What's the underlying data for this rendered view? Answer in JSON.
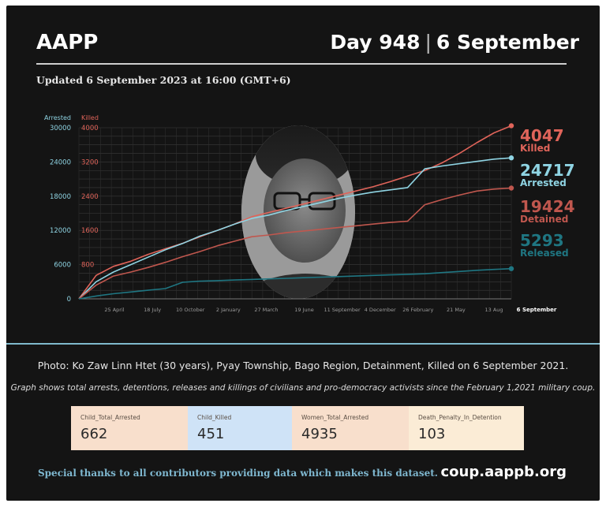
{
  "header": {
    "org": "AAPP",
    "day": "Day 948",
    "separator": "|",
    "date": "6 September",
    "updated": "Updated 6 September 2023 at 16:00 (GMT+6)"
  },
  "chart_data": {
    "type": "line",
    "left_axis": {
      "label": "Arrested",
      "ticks": [
        "30000",
        "24000",
        "18000",
        "12000",
        "6000",
        "0"
      ],
      "range": [
        0,
        30000
      ]
    },
    "right_axis": {
      "label": "Killed",
      "ticks": [
        "4000",
        "3200",
        "2400",
        "1600",
        "800"
      ],
      "range": [
        0,
        4000
      ]
    },
    "x_ticks": [
      "25 April",
      "18 July",
      "10 October",
      "2 January",
      "27 March",
      "19 June",
      "11 September",
      "4 December",
      "26 February",
      "21 May",
      "13 Aug",
      "6 September"
    ],
    "series": [
      {
        "name": "Killed",
        "axis": "right",
        "color": "#e0645a",
        "end_value": 4047,
        "x": [
          0,
          1,
          2,
          3,
          4,
          5,
          6,
          7,
          8,
          9,
          10,
          11,
          12,
          13,
          14,
          15,
          16,
          17,
          18,
          19,
          20,
          21,
          22,
          23,
          24,
          25
        ],
        "y": [
          0,
          550,
          760,
          880,
          1040,
          1170,
          1300,
          1450,
          1600,
          1750,
          1920,
          2020,
          2120,
          2220,
          2320,
          2420,
          2520,
          2620,
          2740,
          2870,
          3000,
          3180,
          3400,
          3650,
          3880,
          4047
        ]
      },
      {
        "name": "Arrested",
        "axis": "left",
        "color": "#8fd4e3",
        "end_value": 24717,
        "x": [
          0,
          1,
          2,
          3,
          4,
          5,
          6,
          7,
          8,
          9,
          10,
          11,
          12,
          13,
          14,
          15,
          16,
          17,
          18,
          19,
          20,
          21,
          22,
          23,
          24,
          25
        ],
        "y": [
          0,
          3000,
          4700,
          6000,
          7300,
          8600,
          9700,
          11000,
          12000,
          13100,
          14100,
          14700,
          15500,
          16200,
          16900,
          17600,
          18200,
          18700,
          19100,
          19500,
          22800,
          23300,
          23700,
          24100,
          24500,
          24717
        ]
      },
      {
        "name": "Detained",
        "axis": "left",
        "color": "#c0574e",
        "end_value": 19424,
        "x": [
          0,
          1,
          2,
          3,
          4,
          5,
          6,
          7,
          8,
          9,
          10,
          11,
          12,
          13,
          14,
          15,
          16,
          17,
          18,
          19,
          20,
          21,
          22,
          23,
          24,
          25
        ],
        "y": [
          0,
          2400,
          4000,
          4700,
          5500,
          6400,
          7400,
          8300,
          9300,
          10100,
          10900,
          11200,
          11600,
          11900,
          12200,
          12500,
          12800,
          13100,
          13400,
          13600,
          16500,
          17400,
          18200,
          18900,
          19250,
          19424
        ]
      },
      {
        "name": "Released",
        "axis": "left",
        "color": "#1f7682",
        "end_value": 5293,
        "x": [
          0,
          1,
          2,
          3,
          4,
          5,
          6,
          7,
          8,
          9,
          10,
          11,
          12,
          13,
          14,
          15,
          16,
          17,
          18,
          19,
          20,
          21,
          22,
          23,
          24,
          25
        ],
        "y": [
          0,
          500,
          900,
          1200,
          1500,
          1800,
          2900,
          3100,
          3200,
          3300,
          3400,
          3500,
          3600,
          3700,
          3800,
          3900,
          4000,
          4100,
          4200,
          4300,
          4400,
          4600,
          4800,
          5000,
          5150,
          5293
        ]
      }
    ],
    "labels": [
      {
        "value": "4047",
        "name": "Killed",
        "color": "#e0645a"
      },
      {
        "value": "24717",
        "name": "Arrested",
        "color": "#8fd4e3"
      },
      {
        "value": "19424",
        "name": "Detained",
        "color": "#c0574e"
      },
      {
        "value": "5293",
        "name": "Released",
        "color": "#1f7682"
      }
    ]
  },
  "photo_caption": "Photo: Ko Zaw Linn Htet (30 years), Pyay Township, Bago Region, Detainment, Killed on 6 September 2021.",
  "note": "Graph shows total arrests, detentions, releases and killings of civilians and pro-democracy activists since the February 1,2021 military coup.",
  "stats": [
    {
      "label": "Child_Total_Arrested",
      "value": "662",
      "color": "#f8dfcc"
    },
    {
      "label": "Child_Killed",
      "value": "451",
      "color": "#cfe3f7"
    },
    {
      "label": "Women_Total_Arrested",
      "value": "4935",
      "color": "#f8dfcc"
    },
    {
      "label": "Death_Penalty_In_Detention",
      "value": "103",
      "color": "#fbecd6"
    }
  ],
  "footer": {
    "thanks": "Special thanks to all contributors providing data which makes this dataset.",
    "site": "coup.aappb.org"
  }
}
